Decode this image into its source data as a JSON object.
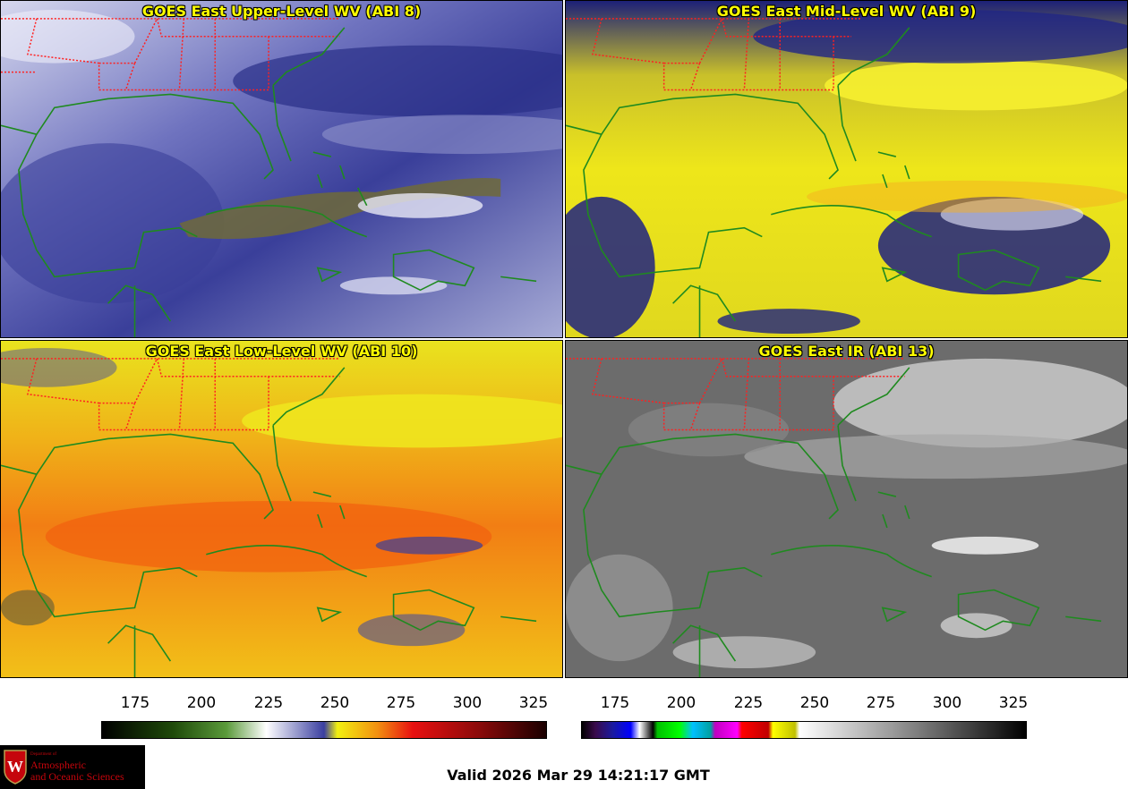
{
  "panels": [
    {
      "title": "GOES East Upper-Level WV (ABI 8)",
      "palette": "wv",
      "base": "#4a4fa8",
      "light": "#c9cde8",
      "accent": "#6e6a3a"
    },
    {
      "title": "GOES East Mid-Level WV (ABI 9)",
      "palette": "wv",
      "base": "#e8e010",
      "light": "#1a1f80",
      "accent": "#f4f22a"
    },
    {
      "title": "GOES East Low-Level WV (ABI 10)",
      "palette": "wv",
      "base": "#f08a12",
      "light": "#e8e21e",
      "accent": "#f06010"
    },
    {
      "title": "GOES East IR (ABI 13)",
      "palette": "ir",
      "base": "#6a6a6a",
      "light": "#d8d8d8",
      "accent": "#9a9a9a"
    }
  ],
  "colorbars": {
    "wv": {
      "ticks": [
        "175",
        "200",
        "225",
        "250",
        "275",
        "300",
        "325"
      ]
    },
    "ir": {
      "ticks": [
        "175",
        "200",
        "225",
        "250",
        "275",
        "300",
        "325"
      ]
    }
  },
  "logo": {
    "dept": "Department of",
    "line1": "Atmospheric",
    "line2": "and Oceanic Sciences",
    "crest_letter": "W"
  },
  "valid_text": "Valid 2026 Mar 29 14:21:17 GMT",
  "colors": {
    "coast": "#1f8a1f",
    "borders": "#ff2020",
    "title": "#ffff00"
  }
}
